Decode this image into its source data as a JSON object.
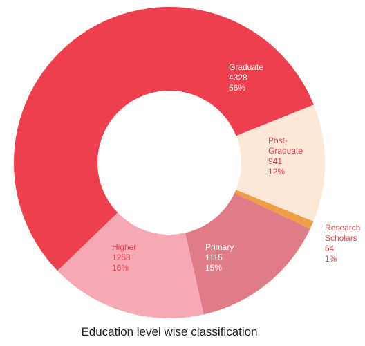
{
  "chart_data": {
    "type": "donut",
    "title": "Education level wise classification",
    "categories": [
      "Graduate",
      "Post-Graduate",
      "Research Scholars",
      "Primary",
      "Higher"
    ],
    "values": [
      4328,
      941,
      64,
      1115,
      1258
    ],
    "percent_labels": [
      "56%",
      "12%",
      "1%",
      "15%",
      "16%"
    ],
    "colors": [
      "#ee3f4e",
      "#fde8d8",
      "#ee9f45",
      "#e07b88",
      "#f7a8b5"
    ],
    "label_colors": [
      "#ffffff",
      "#e8414e",
      "#e8414e",
      "#ffffff",
      "#e8414e"
    ]
  }
}
